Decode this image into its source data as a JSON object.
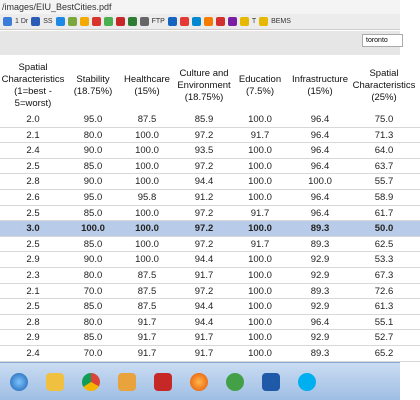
{
  "browser": {
    "url": "/images/EIU_BestCities.pdf",
    "bookmarks": [
      "1 Dr",
      "SS",
      "FTP",
      "T",
      "BEMS"
    ],
    "search": "toronto"
  },
  "table": {
    "headers": [
      "Spatial Characteristics (1=best - 5=worst)",
      "Stability (18.75%)",
      "Healthcare (15%)",
      "Culture and Environment (18.75%)",
      "Education (7.5%)",
      "Infrastructure (15%)",
      "Spatial Characteristics (25%)"
    ],
    "highlighted_row": 7,
    "rows": [
      [
        "2.0",
        "95.0",
        "87.5",
        "85.9",
        "100.0",
        "96.4",
        "75.0"
      ],
      [
        "2.1",
        "80.0",
        "100.0",
        "97.2",
        "91.7",
        "96.4",
        "71.3"
      ],
      [
        "2.4",
        "90.0",
        "100.0",
        "93.5",
        "100.0",
        "96.4",
        "64.0"
      ],
      [
        "2.5",
        "85.0",
        "100.0",
        "97.2",
        "100.0",
        "96.4",
        "63.7"
      ],
      [
        "2.8",
        "90.0",
        "100.0",
        "94.4",
        "100.0",
        "100.0",
        "55.7"
      ],
      [
        "2.6",
        "95.0",
        "95.8",
        "91.2",
        "100.0",
        "96.4",
        "58.9"
      ],
      [
        "2.5",
        "85.0",
        "100.0",
        "97.2",
        "91.7",
        "96.4",
        "61.7"
      ],
      [
        "3.0",
        "100.0",
        "100.0",
        "97.2",
        "100.0",
        "89.3",
        "50.0"
      ],
      [
        "2.5",
        "85.0",
        "100.0",
        "97.2",
        "91.7",
        "89.3",
        "62.5"
      ],
      [
        "2.9",
        "90.0",
        "100.0",
        "94.4",
        "100.0",
        "92.9",
        "53.3"
      ],
      [
        "2.3",
        "80.0",
        "87.5",
        "91.7",
        "100.0",
        "92.9",
        "67.3"
      ],
      [
        "2.1",
        "70.0",
        "87.5",
        "97.2",
        "100.0",
        "89.3",
        "72.6"
      ],
      [
        "2.5",
        "85.0",
        "87.5",
        "94.4",
        "100.0",
        "92.9",
        "61.3"
      ],
      [
        "2.8",
        "80.0",
        "91.7",
        "94.4",
        "100.0",
        "96.4",
        "55.1"
      ],
      [
        "2.9",
        "85.0",
        "91.7",
        "91.7",
        "100.0",
        "92.9",
        "52.7"
      ],
      [
        "2.4",
        "70.0",
        "91.7",
        "91.7",
        "100.0",
        "89.3",
        "65.2"
      ]
    ]
  }
}
